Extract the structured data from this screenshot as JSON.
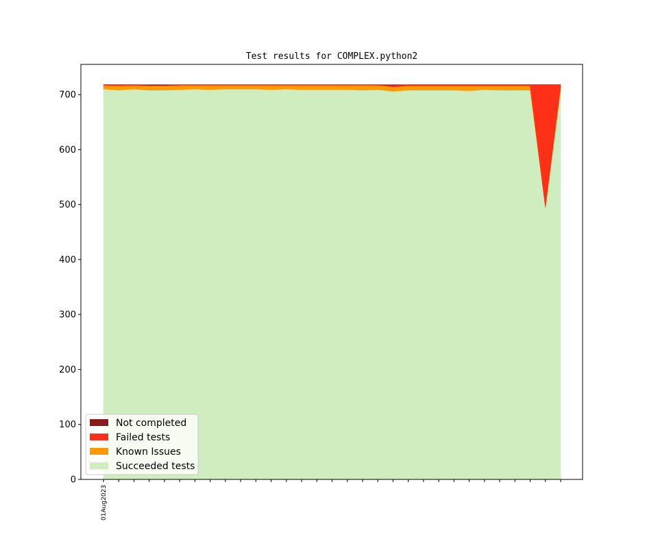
{
  "chart_data": {
    "type": "area",
    "title": "Test results for COMPLEX.python2",
    "xlabel": "",
    "ylabel": "",
    "ylim": [
      0,
      755
    ],
    "yticks": [
      0,
      100,
      200,
      300,
      400,
      500,
      600,
      700
    ],
    "x_tick_count": 31,
    "x_labels": [
      {
        "index": 0,
        "label": "01Aug2023"
      }
    ],
    "legend_position": "lower-left",
    "grid": false,
    "colors": {
      "succeeded": "#cfedbf",
      "known": "#ff9a00",
      "failed": "#ff3018",
      "not_completed": "#8b1a1a"
    },
    "legend": [
      {
        "key": "not_completed",
        "label": "Not completed"
      },
      {
        "key": "failed",
        "label": "Failed tests"
      },
      {
        "key": "known",
        "label": "Known Issues"
      },
      {
        "key": "succeeded",
        "label": "Succeeded tests"
      }
    ],
    "series": [
      {
        "key": "succeeded",
        "name": "Succeeded tests",
        "values": [
          710,
          708,
          710,
          708,
          708,
          709,
          710,
          709,
          710,
          710,
          710,
          709,
          710,
          709,
          709,
          709,
          709,
          708,
          709,
          706,
          708,
          708,
          708,
          708,
          707,
          709,
          708,
          708,
          708,
          495,
          708
        ]
      },
      {
        "key": "known",
        "name": "Known Issues",
        "values": [
          7,
          8,
          7,
          8,
          8,
          8,
          7,
          8,
          7,
          7,
          7,
          8,
          7,
          8,
          8,
          8,
          8,
          9,
          8,
          8,
          8,
          8,
          8,
          8,
          9,
          7,
          8,
          8,
          8,
          0,
          8
        ]
      },
      {
        "key": "failed",
        "name": "Failed tests",
        "values": [
          1,
          2,
          1,
          1,
          1,
          1,
          1,
          1,
          1,
          1,
          1,
          1,
          1,
          1,
          1,
          1,
          1,
          1,
          1,
          3,
          2,
          2,
          2,
          2,
          2,
          2,
          2,
          2,
          2,
          223,
          2
        ]
      },
      {
        "key": "not_completed",
        "name": "Not completed",
        "values": [
          0,
          0,
          0,
          1,
          1,
          0,
          0,
          0,
          0,
          0,
          0,
          0,
          0,
          0,
          0,
          0,
          0,
          0,
          0,
          1,
          0,
          0,
          0,
          0,
          0,
          0,
          0,
          0,
          0,
          0,
          0
        ]
      }
    ]
  }
}
